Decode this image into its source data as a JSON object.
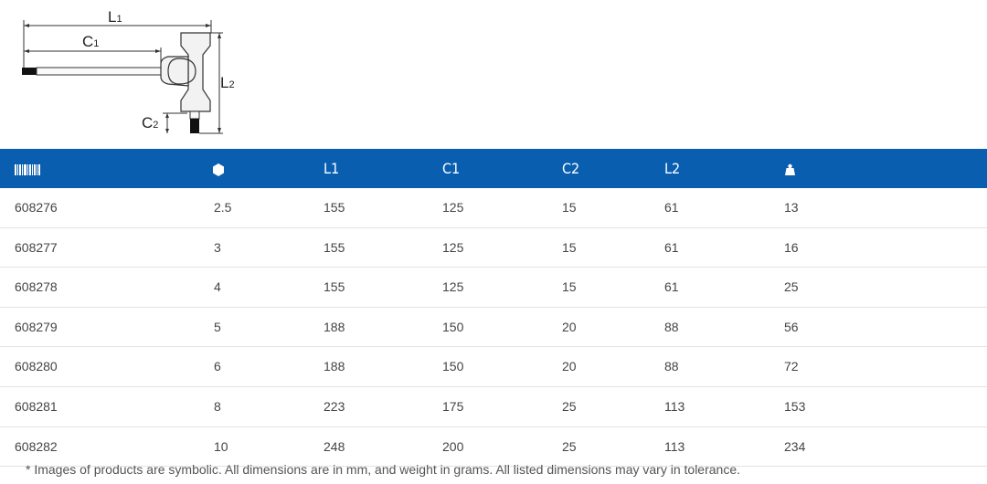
{
  "diagram": {
    "labels": {
      "l1": "L",
      "l1_sub": "1",
      "c1": "C",
      "c1_sub": "1",
      "c2": "C",
      "c2_sub": "2",
      "l2": "L",
      "l2_sub": "2"
    }
  },
  "table": {
    "header_icons": [
      "barcode-icon",
      "hexagon-icon",
      "weight-icon"
    ],
    "headers": {
      "l1": "L1",
      "c1": "C1",
      "c2": "C2",
      "l2": "L2"
    },
    "rows": [
      {
        "code": "608276",
        "size": "2.5",
        "l1": "155",
        "c1": "125",
        "c2": "15",
        "l2": "61",
        "weight": "13"
      },
      {
        "code": "608277",
        "size": "3",
        "l1": "155",
        "c1": "125",
        "c2": "15",
        "l2": "61",
        "weight": "16"
      },
      {
        "code": "608278",
        "size": "4",
        "l1": "155",
        "c1": "125",
        "c2": "15",
        "l2": "61",
        "weight": "25"
      },
      {
        "code": "608279",
        "size": "5",
        "l1": "188",
        "c1": "150",
        "c2": "20",
        "l2": "88",
        "weight": "56"
      },
      {
        "code": "608280",
        "size": "6",
        "l1": "188",
        "c1": "150",
        "c2": "20",
        "l2": "88",
        "weight": "72"
      },
      {
        "code": "608281",
        "size": "8",
        "l1": "223",
        "c1": "175",
        "c2": "25",
        "l2": "113",
        "weight": "153"
      },
      {
        "code": "608282",
        "size": "10",
        "l1": "248",
        "c1": "200",
        "c2": "25",
        "l2": "113",
        "weight": "234"
      }
    ]
  },
  "footnote": "* Images of products are symbolic. All dimensions are in mm, and weight in grams. All listed dimensions may vary in tolerance.",
  "colors": {
    "header_bg": "#0a5eb0",
    "header_text": "#ffffff",
    "row_border": "#e3e3e3"
  }
}
